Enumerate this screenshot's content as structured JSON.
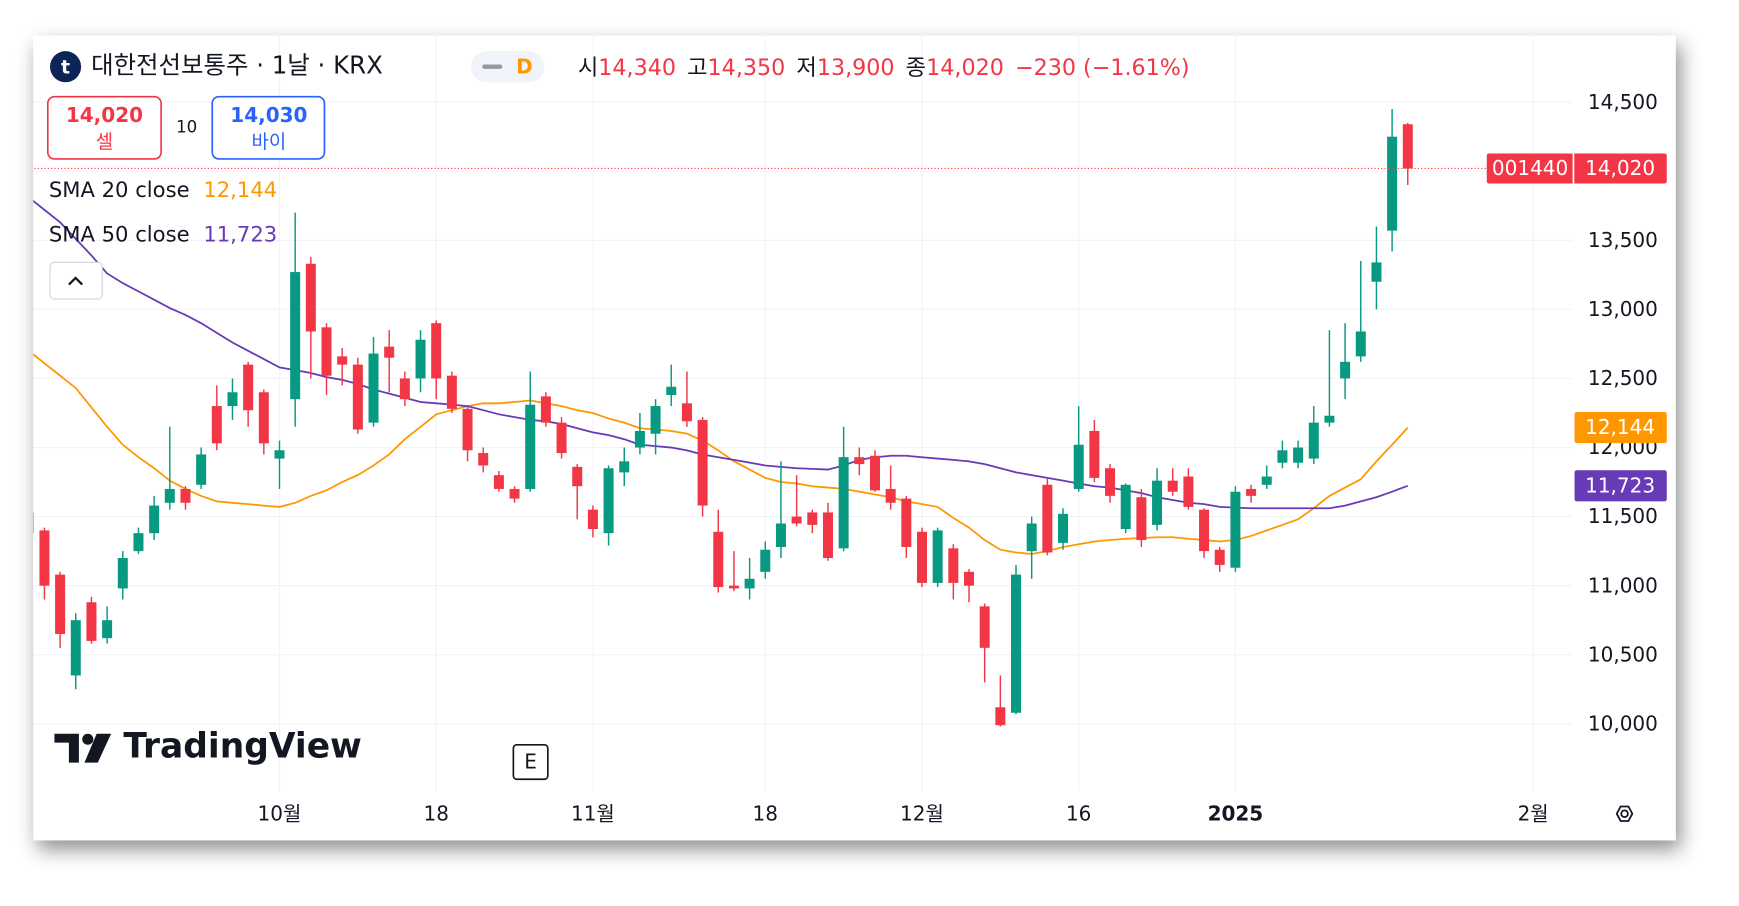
{
  "header": {
    "logo": "t",
    "symbol": "대한전선보통주 · 1날 · KRX",
    "interval_badge": "D",
    "ohlc": [
      {
        "label": "시",
        "value": "14,340"
      },
      {
        "label": "고",
        "value": "14,350"
      },
      {
        "label": "저",
        "value": "13,900"
      },
      {
        "label": "종",
        "value": "14,020"
      }
    ],
    "change": "−230 (−1.61%)"
  },
  "order": {
    "sell_price": "14,020",
    "sell_label": "셀",
    "quantity": "10",
    "buy_price": "14,030",
    "buy_label": "바이"
  },
  "watermark": "TradingView",
  "event_marker": "E",
  "chart_data": {
    "type": "candlestick",
    "x": [
      0,
      1,
      2,
      3,
      4,
      5,
      6,
      7,
      8,
      9,
      10,
      11,
      12,
      13,
      14,
      15,
      16,
      17,
      18,
      19,
      20,
      21,
      22,
      23,
      24,
      25,
      26,
      27,
      28,
      29,
      30,
      31,
      32,
      33,
      34,
      35,
      36,
      37,
      38,
      39,
      40,
      41,
      42,
      43,
      44,
      45,
      46,
      47,
      48,
      49,
      50,
      51,
      52,
      53,
      54,
      55,
      56,
      57,
      58,
      59,
      60,
      61,
      62,
      63,
      64,
      65,
      66,
      67,
      68,
      69,
      70,
      71,
      72,
      73,
      74,
      75,
      76,
      77,
      78,
      79,
      80,
      81,
      82,
      83,
      84,
      85,
      86,
      87,
      88
    ],
    "open": [
      11530,
      11400,
      11080,
      10350,
      10880,
      10620,
      10980,
      11250,
      11380,
      11600,
      11700,
      11730,
      12300,
      12300,
      12600,
      12400,
      11920,
      12350,
      13330,
      12870,
      12660,
      12600,
      12180,
      12730,
      12500,
      12500,
      12900,
      12520,
      12280,
      11960,
      11800,
      11700,
      11700,
      12370,
      12180,
      11860,
      11550,
      11380,
      11820,
      12000,
      12100,
      12380,
      12320,
      12200,
      11390,
      11000,
      10980,
      11100,
      11280,
      11500,
      11530,
      11530,
      11270,
      11930,
      11940,
      11700,
      11630,
      11390,
      11020,
      11270,
      11100,
      10850,
      10120,
      10080,
      11250,
      11730,
      11310,
      11700,
      12120,
      11850,
      11410,
      11640,
      11440,
      11760,
      11790,
      11550,
      11260,
      11130,
      11700,
      11730,
      11890,
      11890,
      11920,
      12180,
      12500,
      12660,
      13200,
      13570,
      14340
    ],
    "high": [
      11550,
      11420,
      11100,
      10800,
      10920,
      10850,
      11250,
      11420,
      11650,
      12150,
      11720,
      12000,
      12450,
      12500,
      12620,
      12420,
      12050,
      13700,
      13380,
      12900,
      12720,
      12650,
      12800,
      12850,
      12550,
      12850,
      12920,
      12550,
      12300,
      12000,
      11830,
      11720,
      12550,
      12400,
      12220,
      11880,
      11580,
      11870,
      12000,
      12250,
      12350,
      12600,
      12550,
      12220,
      11550,
      11250,
      11200,
      11320,
      11900,
      11800,
      11550,
      11600,
      12150,
      12000,
      11980,
      11870,
      11650,
      11420,
      11420,
      11300,
      11120,
      10870,
      10350,
      11150,
      11500,
      11780,
      11560,
      12300,
      12200,
      11880,
      11740,
      11700,
      11850,
      11850,
      11850,
      11560,
      11280,
      11720,
      11730,
      11870,
      12050,
      12050,
      12300,
      12850,
      12900,
      13350,
      13600,
      14450,
      14350
    ],
    "low": [
      11350,
      10900,
      10550,
      10250,
      10580,
      10580,
      10900,
      11230,
      11330,
      11550,
      11550,
      11700,
      11980,
      12200,
      12150,
      11950,
      11700,
      12150,
      12500,
      12380,
      12450,
      12100,
      12150,
      12400,
      12300,
      12400,
      12350,
      12250,
      11900,
      11820,
      11680,
      11600,
      11680,
      12150,
      11920,
      11480,
      11350,
      11290,
      11720,
      11950,
      11950,
      12300,
      12150,
      11500,
      10950,
      10960,
      10900,
      11050,
      11200,
      11430,
      11380,
      11180,
      11250,
      11800,
      11680,
      11550,
      11200,
      10990,
      10990,
      10900,
      10880,
      10300,
      9980,
      10070,
      11050,
      11220,
      11260,
      11680,
      11750,
      11600,
      11380,
      11280,
      11400,
      11650,
      11550,
      11200,
      11100,
      11100,
      11600,
      11700,
      11850,
      11850,
      11880,
      12150,
      12350,
      12620,
      13000,
      13420,
      13900
    ],
    "close": [
      11380,
      11000,
      10650,
      10750,
      10600,
      10750,
      11200,
      11380,
      11580,
      11700,
      11600,
      11950,
      12030,
      12400,
      12270,
      12030,
      11980,
      13270,
      12840,
      12520,
      12600,
      12130,
      12680,
      12650,
      12350,
      12780,
      12500,
      12280,
      11980,
      11870,
      11700,
      11630,
      12310,
      12180,
      11960,
      11720,
      11410,
      11850,
      11900,
      12120,
      12300,
      12440,
      12190,
      11580,
      10990,
      10980,
      11050,
      11260,
      11450,
      11450,
      11440,
      11200,
      11930,
      11880,
      11690,
      11600,
      11280,
      11020,
      11400,
      11020,
      11000,
      10550,
      9990,
      11080,
      11450,
      11240,
      11520,
      12020,
      11780,
      11650,
      11730,
      11330,
      11760,
      11680,
      11570,
      11250,
      11150,
      11680,
      11650,
      11790,
      11980,
      12000,
      12180,
      12230,
      12620,
      12840,
      13340,
      14250,
      14020
    ],
    "up_color": "#089981",
    "down_color": "#f23645",
    "overlays": [
      {
        "name": "SMA 20 close",
        "color": "#ff9800",
        "value_label": "12,144",
        "values": [
          12700,
          12610,
          12520,
          12430,
          12290,
          12150,
          12020,
          11930,
          11850,
          11760,
          11700,
          11650,
          11610,
          11600,
          11590,
          11580,
          11570,
          11600,
          11650,
          11690,
          11750,
          11800,
          11870,
          11950,
          12060,
          12150,
          12240,
          12270,
          12300,
          12320,
          12320,
          12330,
          12340,
          12320,
          12300,
          12270,
          12250,
          12210,
          12180,
          12140,
          12130,
          12120,
          12100,
          12050,
          11980,
          11900,
          11840,
          11780,
          11750,
          11740,
          11720,
          11710,
          11700,
          11680,
          11660,
          11640,
          11610,
          11590,
          11570,
          11490,
          11420,
          11330,
          11260,
          11240,
          11230,
          11250,
          11280,
          11300,
          11320,
          11330,
          11340,
          11345,
          11350,
          11350,
          11340,
          11330,
          11320,
          11330,
          11360,
          11400,
          11440,
          11480,
          11560,
          11650,
          11710,
          11770,
          11900,
          12020,
          12144
        ]
      },
      {
        "name": "SMA 50 close",
        "color": "#673ab7",
        "value_label": "11,723",
        "values": [
          13810,
          13720,
          13630,
          13510,
          13390,
          13260,
          13190,
          13130,
          13070,
          13010,
          12960,
          12900,
          12830,
          12760,
          12700,
          12640,
          12580,
          12560,
          12540,
          12510,
          12490,
          12460,
          12420,
          12390,
          12360,
          12330,
          12320,
          12310,
          12300,
          12270,
          12240,
          12220,
          12200,
          12190,
          12170,
          12140,
          12110,
          12090,
          12060,
          12020,
          12010,
          12000,
          11980,
          11950,
          11930,
          11910,
          11890,
          11870,
          11860,
          11850,
          11845,
          11840,
          11870,
          11910,
          11930,
          11940,
          11940,
          11930,
          11920,
          11910,
          11900,
          11880,
          11850,
          11820,
          11800,
          11780,
          11760,
          11740,
          11720,
          11710,
          11690,
          11670,
          11640,
          11620,
          11600,
          11590,
          11570,
          11565,
          11560,
          11560,
          11560,
          11560,
          11560,
          11560,
          11580,
          11610,
          11640,
          11680,
          11723
        ]
      }
    ],
    "xlim": [
      0.15,
      98.5
    ],
    "xticks": [
      {
        "value": 16,
        "label": "10월"
      },
      {
        "value": 26,
        "label": "18"
      },
      {
        "value": 36,
        "label": "11월"
      },
      {
        "value": 47,
        "label": "18"
      },
      {
        "value": 57,
        "label": "12월"
      },
      {
        "value": 67,
        "label": "16"
      },
      {
        "value": 77,
        "label": "2025"
      },
      {
        "value": 96,
        "label": "2월"
      }
    ],
    "ylim": [
      9510,
      14998
    ],
    "yticks": [
      {
        "value": 10000,
        "label": "10,000"
      },
      {
        "value": 10500,
        "label": "10,500"
      },
      {
        "value": 11000,
        "label": "11,000"
      },
      {
        "value": 11500,
        "label": "11,500"
      },
      {
        "value": 12000,
        "label": "12,000"
      },
      {
        "value": 12500,
        "label": "12,500"
      },
      {
        "value": 13000,
        "label": "13,000"
      },
      {
        "value": 13500,
        "label": "13,500"
      },
      {
        "value": 14000,
        "label": "14,000"
      },
      {
        "value": 14500,
        "label": "14,500"
      }
    ],
    "grid": true,
    "last_price": {
      "value": 14020,
      "label": "14,020",
      "code": "001440"
    }
  }
}
